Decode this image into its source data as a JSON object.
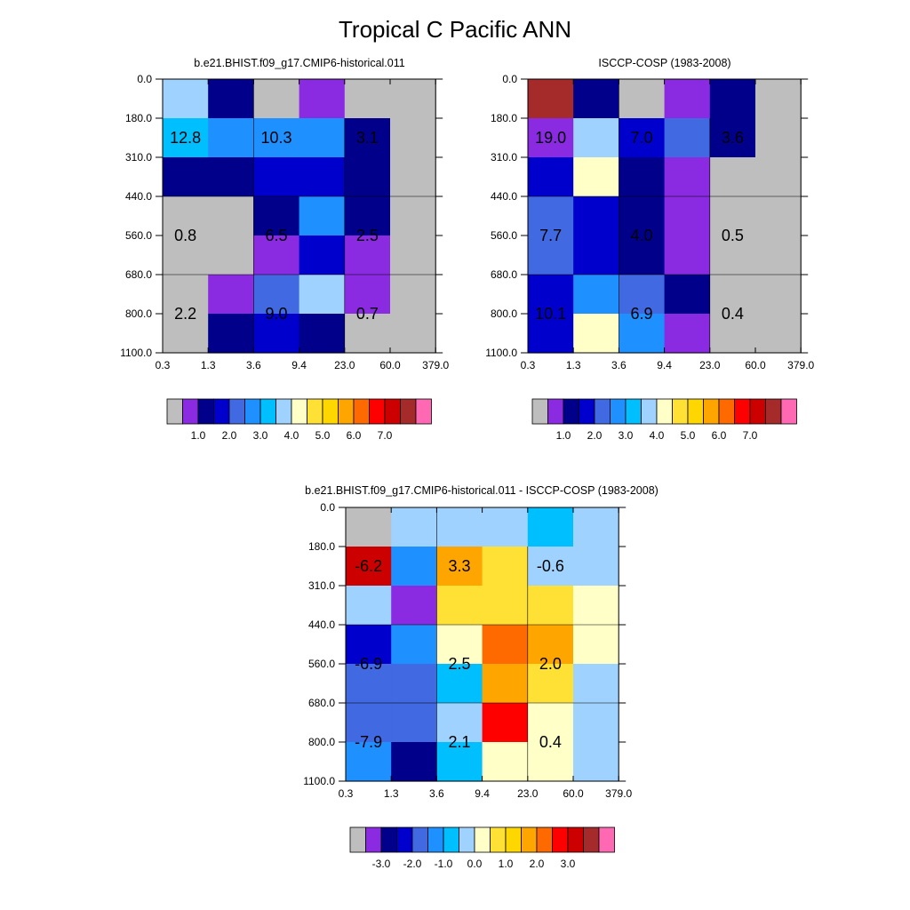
{
  "figure": {
    "title": "Tropical C Pacific ANN"
  },
  "colors": {
    "missing": "#bebebe",
    "seq_palette": [
      "#bebebe",
      "#8a2be2",
      "#00008b",
      "#0000cd",
      "#4169e1",
      "#1e90ff",
      "#00bfff",
      "#a0d2ff",
      "#ffffc8",
      "#ffe135",
      "#ffd700",
      "#ffa500",
      "#ff6a00",
      "#ff0000",
      "#cd0000",
      "#a52a2a",
      "#ff69b4"
    ]
  },
  "chart_data": [
    {
      "type": "heatmap",
      "id": "model",
      "title": "b.e21.BHIST.f09_g17.CMIP6-historical.011",
      "x_ticks": [
        "0.3",
        "1.3",
        "3.6",
        "9.4",
        "23.0",
        "60.0",
        "379.0"
      ],
      "y_ticks": [
        "0.0",
        "180.0",
        "310.0",
        "440.0",
        "560.0",
        "680.0",
        "800.0",
        "1100.0"
      ],
      "cells": [
        [
          "#a0d2ff",
          "#00008b",
          "#bebebe",
          "#8a2be2",
          "#bebebe",
          "#bebebe"
        ],
        [
          "#00bfff",
          "#1e90ff",
          "#1e90ff",
          "#1e90ff",
          "#00008b",
          "#bebebe"
        ],
        [
          "#00008b",
          "#00008b",
          "#0000cd",
          "#0000cd",
          "#00008b",
          "#bebebe"
        ],
        [
          "#bebebe",
          "#bebebe",
          "#00008b",
          "#1e90ff",
          "#00008b",
          "#bebebe"
        ],
        [
          "#bebebe",
          "#bebebe",
          "#8a2be2",
          "#0000cd",
          "#8a2be2",
          "#bebebe"
        ],
        [
          "#bebebe",
          "#8a2be2",
          "#4169e1",
          "#a0d2ff",
          "#8a2be2",
          "#bebebe"
        ],
        [
          "#bebebe",
          "#00008b",
          "#0000cd",
          "#00008b",
          "#bebebe",
          "#bebebe"
        ]
      ],
      "labels": [
        {
          "text": "12.8",
          "col": 0.5,
          "row": 1.5
        },
        {
          "text": "10.3",
          "col": 2.5,
          "row": 1.5
        },
        {
          "text": "3.1",
          "col": 4.5,
          "row": 1.5
        },
        {
          "text": "0.8",
          "col": 0.5,
          "row": 4.0
        },
        {
          "text": "6.5",
          "col": 2.5,
          "row": 4.0
        },
        {
          "text": "2.5",
          "col": 4.5,
          "row": 4.0
        },
        {
          "text": "2.2",
          "col": 0.5,
          "row": 6.0
        },
        {
          "text": "9.0",
          "col": 2.5,
          "row": 6.0
        },
        {
          "text": "0.7",
          "col": 4.5,
          "row": 6.0
        }
      ],
      "colorbar": {
        "colors": [
          "#bebebe",
          "#8a2be2",
          "#00008b",
          "#0000cd",
          "#4169e1",
          "#1e90ff",
          "#00bfff",
          "#a0d2ff",
          "#ffffc8",
          "#ffe135",
          "#ffd700",
          "#ffa500",
          "#ff6a00",
          "#ff0000",
          "#cd0000",
          "#a52a2a",
          "#ff69b4"
        ],
        "tick_labels": [
          "1.0",
          "2.0",
          "3.0",
          "4.0",
          "5.0",
          "6.0",
          "7.0"
        ],
        "first_tick_box": 2
      }
    },
    {
      "type": "heatmap",
      "id": "obs",
      "title": "ISCCP-COSP (1983-2008)",
      "x_ticks": [
        "0.3",
        "1.3",
        "3.6",
        "9.4",
        "23.0",
        "60.0",
        "379.0"
      ],
      "y_ticks": [
        "0.0",
        "180.0",
        "310.0",
        "440.0",
        "560.0",
        "680.0",
        "800.0",
        "1100.0"
      ],
      "cells": [
        [
          "#a52a2a",
          "#00008b",
          "#bebebe",
          "#8a2be2",
          "#00008b",
          "#bebebe"
        ],
        [
          "#8a2be2",
          "#a0d2ff",
          "#0000cd",
          "#4169e1",
          "#00008b",
          "#bebebe"
        ],
        [
          "#0000cd",
          "#ffffc8",
          "#00008b",
          "#8a2be2",
          "#bebebe",
          "#bebebe"
        ],
        [
          "#4169e1",
          "#0000cd",
          "#00008b",
          "#8a2be2",
          "#bebebe",
          "#bebebe"
        ],
        [
          "#4169e1",
          "#0000cd",
          "#00008b",
          "#8a2be2",
          "#bebebe",
          "#bebebe"
        ],
        [
          "#0000cd",
          "#1e90ff",
          "#4169e1",
          "#00008b",
          "#bebebe",
          "#bebebe"
        ],
        [
          "#0000cd",
          "#ffffc8",
          "#1e90ff",
          "#8a2be2",
          "#bebebe",
          "#bebebe"
        ]
      ],
      "labels": [
        {
          "text": "19.0",
          "col": 0.5,
          "row": 1.5
        },
        {
          "text": "7.0",
          "col": 2.5,
          "row": 1.5
        },
        {
          "text": "3.6",
          "col": 4.5,
          "row": 1.5
        },
        {
          "text": "7.7",
          "col": 0.5,
          "row": 4.0
        },
        {
          "text": "4.0",
          "col": 2.5,
          "row": 4.0
        },
        {
          "text": "0.5",
          "col": 4.5,
          "row": 4.0
        },
        {
          "text": "10.1",
          "col": 0.5,
          "row": 6.0
        },
        {
          "text": "6.9",
          "col": 2.5,
          "row": 6.0
        },
        {
          "text": "0.4",
          "col": 4.5,
          "row": 6.0
        }
      ],
      "colorbar": {
        "colors": [
          "#bebebe",
          "#8a2be2",
          "#00008b",
          "#0000cd",
          "#4169e1",
          "#1e90ff",
          "#00bfff",
          "#a0d2ff",
          "#ffffc8",
          "#ffe135",
          "#ffd700",
          "#ffa500",
          "#ff6a00",
          "#ff0000",
          "#cd0000",
          "#a52a2a",
          "#ff69b4"
        ],
        "tick_labels": [
          "1.0",
          "2.0",
          "3.0",
          "4.0",
          "5.0",
          "6.0",
          "7.0"
        ],
        "first_tick_box": 2
      }
    },
    {
      "type": "heatmap",
      "id": "diff",
      "title": "b.e21.BHIST.f09_g17.CMIP6-historical.011 - ISCCP-COSP (1983-2008)",
      "x_ticks": [
        "0.3",
        "1.3",
        "3.6",
        "9.4",
        "23.0",
        "60.0",
        "379.0"
      ],
      "y_ticks": [
        "0.0",
        "180.0",
        "310.0",
        "440.0",
        "560.0",
        "680.0",
        "800.0",
        "1100.0"
      ],
      "cells": [
        [
          "#bebebe",
          "#a0d2ff",
          "#a0d2ff",
          "#a0d2ff",
          "#00bfff",
          "#a0d2ff"
        ],
        [
          "#cd0000",
          "#1e90ff",
          "#ffa500",
          "#ffe135",
          "#a0d2ff",
          "#a0d2ff"
        ],
        [
          "#a0d2ff",
          "#8a2be2",
          "#ffe135",
          "#ffe135",
          "#ffe135",
          "#ffffc8"
        ],
        [
          "#0000cd",
          "#1e90ff",
          "#ffffc8",
          "#ff6a00",
          "#ffa500",
          "#ffffc8"
        ],
        [
          "#4169e1",
          "#4169e1",
          "#00bfff",
          "#ffa500",
          "#ffe135",
          "#a0d2ff"
        ],
        [
          "#4169e1",
          "#4169e1",
          "#a0d2ff",
          "#ff0000",
          "#ffffc8",
          "#a0d2ff"
        ],
        [
          "#1e90ff",
          "#00008b",
          "#00bfff",
          "#ffffc8",
          "#ffffc8",
          "#a0d2ff"
        ]
      ],
      "labels": [
        {
          "text": "-6.2",
          "col": 0.5,
          "row": 1.5
        },
        {
          "text": "3.3",
          "col": 2.5,
          "row": 1.5
        },
        {
          "text": "-0.6",
          "col": 4.5,
          "row": 1.5
        },
        {
          "text": "-6.9",
          "col": 0.5,
          "row": 4.0
        },
        {
          "text": "2.5",
          "col": 2.5,
          "row": 4.0
        },
        {
          "text": "2.0",
          "col": 4.5,
          "row": 4.0
        },
        {
          "text": "-7.9",
          "col": 0.5,
          "row": 6.0
        },
        {
          "text": "2.1",
          "col": 2.5,
          "row": 6.0
        },
        {
          "text": "0.4",
          "col": 4.5,
          "row": 6.0
        }
      ],
      "colorbar": {
        "colors": [
          "#bebebe",
          "#8a2be2",
          "#00008b",
          "#0000cd",
          "#4169e1",
          "#1e90ff",
          "#00bfff",
          "#a0d2ff",
          "#ffffc8",
          "#ffe135",
          "#ffd700",
          "#ffa500",
          "#ff6a00",
          "#ff0000",
          "#cd0000",
          "#a52a2a",
          "#ff69b4"
        ],
        "tick_labels": [
          "-3.0",
          "-2.0",
          "-1.0",
          "0.0",
          "1.0",
          "2.0",
          "3.0"
        ],
        "first_tick_box": 2
      }
    }
  ]
}
